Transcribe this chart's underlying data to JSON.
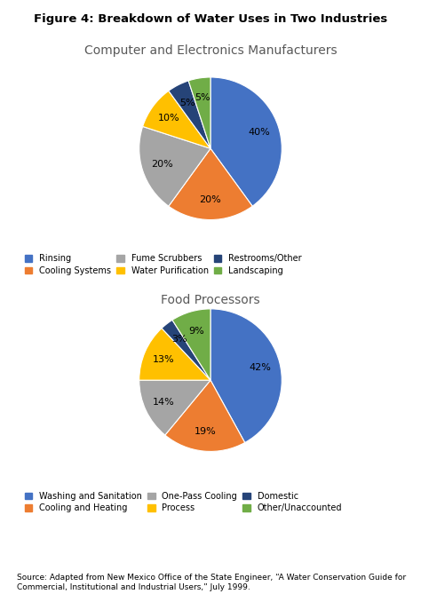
{
  "main_title": "Figure 4: Breakdown of Water Uses in Two Industries",
  "chart1_title": "Computer and Electronics Manufacturers",
  "chart1_labels": [
    "Rinsing",
    "Cooling Systems",
    "Fume Scrubbers",
    "Water Purification",
    "Restrooms/Other",
    "Landscaping"
  ],
  "chart1_values": [
    40,
    20,
    20,
    10,
    5,
    5
  ],
  "chart1_colors": [
    "#4472C4",
    "#ED7D31",
    "#A5A5A5",
    "#FFC000",
    "#264478",
    "#70AD47"
  ],
  "chart1_startangle": 90,
  "chart2_title": "Food Processors",
  "chart2_labels": [
    "Washing and Sanitation",
    "Cooling and Heating",
    "One-Pass Cooling",
    "Process",
    "Domestic",
    "Other/Unaccounted"
  ],
  "chart2_values": [
    42,
    19,
    14,
    13,
    3,
    9
  ],
  "chart2_colors": [
    "#4472C4",
    "#ED7D31",
    "#A5A5A5",
    "#FFC000",
    "#264478",
    "#70AD47"
  ],
  "chart2_startangle": 90,
  "source_text": "Source: Adapted from New Mexico Office of the State Engineer, “A Water Conservation Guide for\nCommercial, Institutional and Industrial Users,” July 1999.",
  "text_color": "#595959"
}
